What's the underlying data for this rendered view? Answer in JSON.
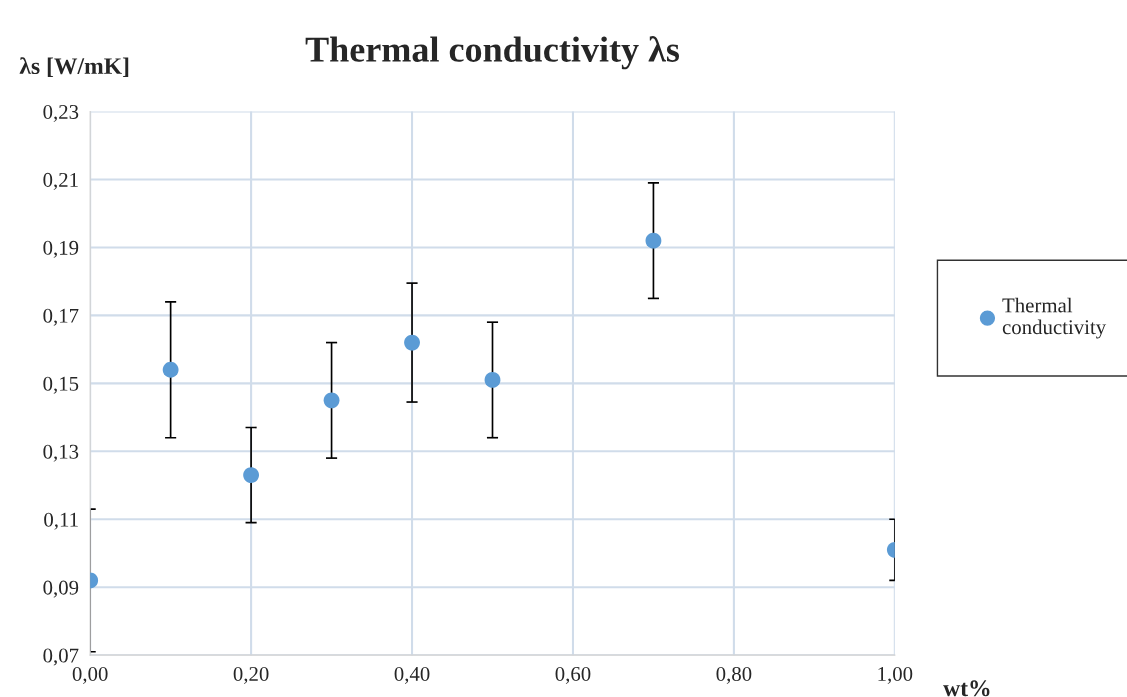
{
  "chart_data": {
    "type": "scatter",
    "title": "Thermal conductivity λs",
    "xlabel": "wt%",
    "ylabel": "λs [W/mK]",
    "x": [
      0.0,
      0.1,
      0.2,
      0.3,
      0.4,
      0.5,
      0.7,
      1.0
    ],
    "series": [
      {
        "name": "Thermal\nconductivity",
        "color": "#5b9bd5",
        "values": [
          0.092,
          0.154,
          0.123,
          0.145,
          0.162,
          0.151,
          0.192,
          0.101
        ],
        "errors": [
          0.021,
          0.02,
          0.014,
          0.017,
          0.0175,
          0.017,
          0.017,
          0.009
        ]
      }
    ],
    "xlim": [
      0,
      1
    ],
    "xticks": [
      {
        "value": 0,
        "label": "0,00"
      },
      {
        "value": 0.2,
        "label": "0,20"
      },
      {
        "value": 0.4,
        "label": "0,40"
      },
      {
        "value": 0.6,
        "label": "0,60"
      },
      {
        "value": 0.8,
        "label": "0,80"
      },
      {
        "value": 1,
        "label": "1,00"
      }
    ],
    "ylim": [
      0.07,
      0.23
    ],
    "yticks": [
      {
        "value": 0.07,
        "label": "0,07"
      },
      {
        "value": 0.09,
        "label": "0,09"
      },
      {
        "value": 0.11,
        "label": "0,11"
      },
      {
        "value": 0.13,
        "label": "0,13"
      },
      {
        "value": 0.15,
        "label": "0,15"
      },
      {
        "value": 0.17,
        "label": "0,17"
      },
      {
        "value": 0.19,
        "label": "0,19"
      },
      {
        "value": 0.21,
        "label": "0,21"
      },
      {
        "value": 0.23,
        "label": "0,23"
      }
    ],
    "grid": true,
    "legend": "right",
    "marker": "circle"
  }
}
